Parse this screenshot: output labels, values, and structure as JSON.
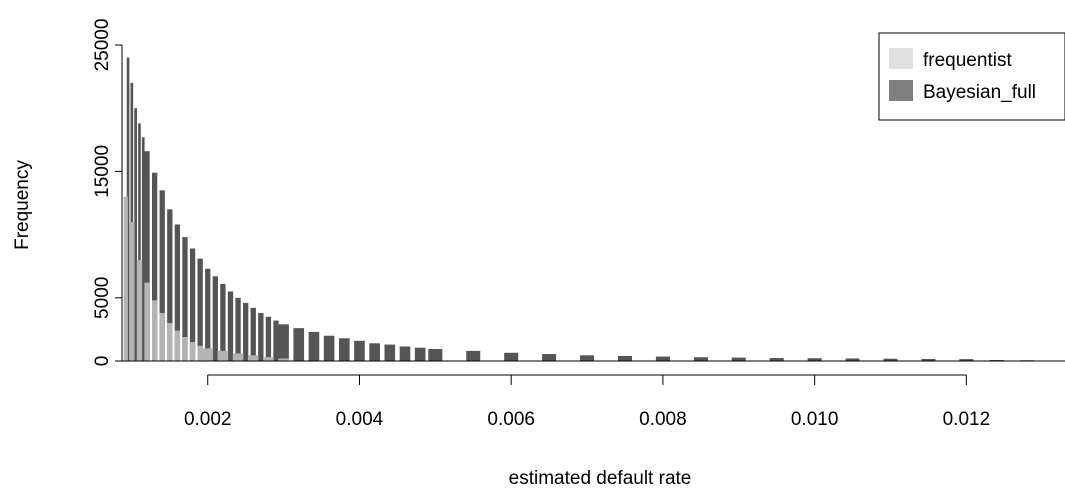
{
  "chart_data": {
    "type": "bar",
    "title": "",
    "xlabel": "estimated default rate",
    "ylabel": "Frequency",
    "xlim": [
      0.00087,
      0.0133
    ],
    "ylim": [
      0,
      25000
    ],
    "x_ticks": [
      0.002,
      0.004,
      0.006,
      0.008,
      0.01,
      0.012
    ],
    "x_tick_labels": [
      "0.002",
      "0.004",
      "0.006",
      "0.008",
      "0.010",
      "0.012"
    ],
    "y_ticks": [
      0,
      5000,
      15000,
      25000
    ],
    "y_tick_labels": [
      "0",
      "5000",
      "15000",
      "25000"
    ],
    "grid": false,
    "legend": {
      "placement": "top-right",
      "entries": [
        {
          "label": "frequentist",
          "color": "#e0e0e0"
        },
        {
          "label": "Bayesian_full",
          "color": "#808080"
        }
      ]
    },
    "series": [
      {
        "name": "Bayesian_full",
        "color": "#555555",
        "x": [
          0.00095,
          0.001,
          0.00105,
          0.0011,
          0.00115,
          0.0012,
          0.0013,
          0.0014,
          0.0015,
          0.0016,
          0.0017,
          0.0018,
          0.0019,
          0.002,
          0.0021,
          0.0022,
          0.0023,
          0.0024,
          0.0025,
          0.0026,
          0.0027,
          0.0028,
          0.0029,
          0.003,
          0.0032,
          0.0034,
          0.0036,
          0.0038,
          0.004,
          0.0042,
          0.0044,
          0.0046,
          0.0048,
          0.005,
          0.0055,
          0.006,
          0.0065,
          0.007,
          0.0075,
          0.008,
          0.0085,
          0.009,
          0.0095,
          0.01,
          0.0105,
          0.011,
          0.0115,
          0.012,
          0.0124,
          0.0128
        ],
        "values": [
          24000,
          22000,
          20000,
          18800,
          17700,
          16600,
          14900,
          13500,
          12000,
          10800,
          9800,
          8900,
          8100,
          7300,
          6700,
          6100,
          5500,
          5000,
          4600,
          4200,
          3800,
          3500,
          3200,
          2900,
          2600,
          2300,
          2000,
          1800,
          1600,
          1400,
          1300,
          1150,
          1050,
          950,
          800,
          650,
          550,
          450,
          400,
          350,
          300,
          270,
          240,
          220,
          200,
          180,
          160,
          150,
          80,
          60
        ]
      },
      {
        "name": "frequentist",
        "color": "#b4b4b4",
        "x": [
          0.00092,
          0.001,
          0.0011,
          0.0012,
          0.0013,
          0.0014,
          0.0015,
          0.0016,
          0.0017,
          0.0018,
          0.0019,
          0.002,
          0.0022,
          0.0024,
          0.0026,
          0.0028,
          0.003
        ],
        "values": [
          13000,
          11000,
          8000,
          6200,
          4800,
          3800,
          3000,
          2400,
          1900,
          1500,
          1200,
          1000,
          800,
          600,
          450,
          300,
          200
        ]
      }
    ]
  }
}
